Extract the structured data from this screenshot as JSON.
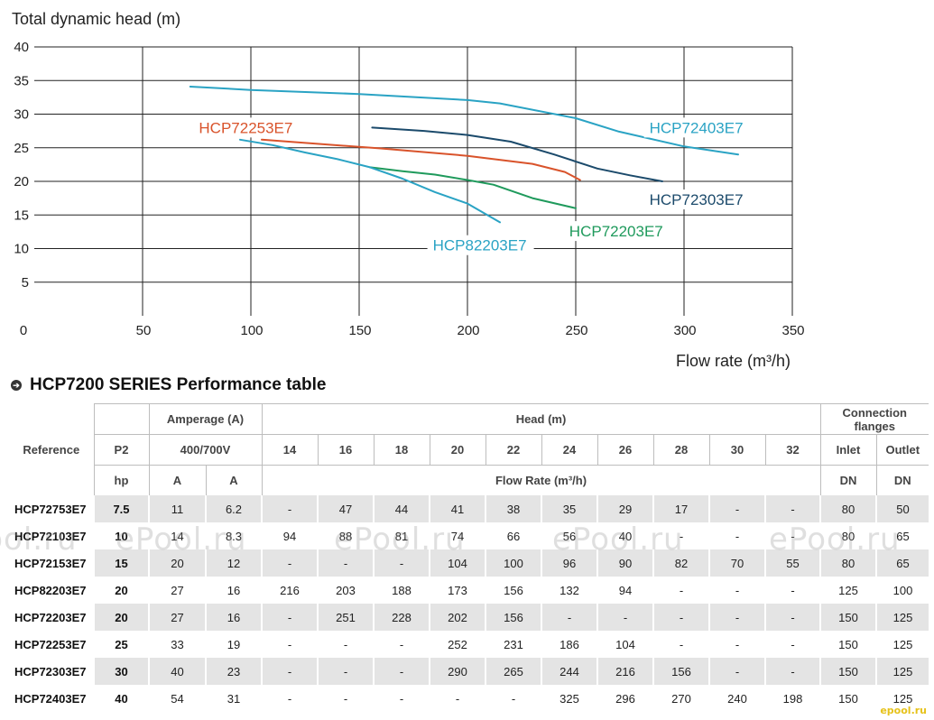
{
  "chart_data": {
    "type": "line",
    "ylabel": "Total dynamic head (m)",
    "xlabel": "Flow rate (m³/h)",
    "xlim": [
      0,
      350
    ],
    "ylim": [
      0,
      40
    ],
    "xticks": [
      0,
      50,
      100,
      150,
      200,
      250,
      300,
      350
    ],
    "yticks": [
      5,
      10,
      15,
      20,
      25,
      30,
      35,
      40
    ],
    "grid": true,
    "series": [
      {
        "name": "HCP72403E7",
        "color": "#2aa3c4",
        "points": [
          [
            72,
            34.1
          ],
          [
            100,
            33.6
          ],
          [
            150,
            33.0
          ],
          [
            200,
            32.1
          ],
          [
            215,
            31.6
          ],
          [
            250,
            29.4
          ],
          [
            270,
            27.4
          ],
          [
            300,
            25.2
          ],
          [
            325,
            24.0
          ]
        ]
      },
      {
        "name": "HCP72253E7",
        "color": "#d9532b",
        "points": [
          [
            105,
            26.2
          ],
          [
            130,
            25.6
          ],
          [
            160,
            24.9
          ],
          [
            200,
            23.8
          ],
          [
            230,
            22.6
          ],
          [
            245,
            21.4
          ],
          [
            252,
            20.2
          ]
        ]
      },
      {
        "name": "HCP72303E7",
        "color": "#1b4a6b",
        "points": [
          [
            156,
            28.0
          ],
          [
            180,
            27.5
          ],
          [
            200,
            26.9
          ],
          [
            220,
            25.9
          ],
          [
            240,
            24.0
          ],
          [
            260,
            21.9
          ],
          [
            275,
            20.9
          ],
          [
            290,
            20.0
          ]
        ]
      },
      {
        "name": "HCP72203E7",
        "color": "#1f9a5c",
        "points": [
          [
            155,
            22.1
          ],
          [
            170,
            21.5
          ],
          [
            185,
            21.0
          ],
          [
            200,
            20.2
          ],
          [
            212,
            19.5
          ],
          [
            230,
            17.5
          ],
          [
            250,
            16.0
          ]
        ]
      },
      {
        "name": "HCP82203E7",
        "color": "#2aa3c4",
        "points": [
          [
            95,
            26.2
          ],
          [
            110,
            25.4
          ],
          [
            125,
            24.3
          ],
          [
            140,
            23.3
          ],
          [
            155,
            22.1
          ],
          [
            170,
            20.4
          ],
          [
            185,
            18.4
          ],
          [
            200,
            16.7
          ],
          [
            215,
            13.9
          ]
        ]
      }
    ],
    "labels": [
      {
        "text": "HCP72253E7",
        "x": 76,
        "y": 27.2,
        "color": "#d9532b"
      },
      {
        "text": "HCP72403E7",
        "x": 284,
        "y": 27.2,
        "color": "#2aa3c4"
      },
      {
        "text": "HCP72303E7",
        "x": 284,
        "y": 16.5,
        "color": "#1b4a6b"
      },
      {
        "text": "HCP72203E7",
        "x": 247,
        "y": 11.8,
        "color": "#1f9a5c"
      },
      {
        "text": "HCP82203E7",
        "x": 184,
        "y": 9.7,
        "color": "#2aa3c4"
      }
    ]
  },
  "table": {
    "title": "HCP7200 SERIES Performance table",
    "bullet": "➔",
    "headers": {
      "reference": "Reference",
      "p2": "P2",
      "amperage": "Amperage (A)",
      "voltage": "400/700V",
      "head": "Head (m)",
      "flow_rate": "Flow Rate (m³/h)",
      "connection_flanges": "Connection flanges",
      "inlet": "Inlet",
      "outlet": "Outlet",
      "hp": "hp",
      "amp_unit": "A",
      "dn": "DN",
      "heads": [
        "14",
        "16",
        "18",
        "20",
        "22",
        "24",
        "26",
        "28",
        "30",
        "32"
      ]
    },
    "rows": [
      [
        "HCP72753E7",
        "7.5",
        "11",
        "6.2",
        "-",
        "47",
        "44",
        "41",
        "38",
        "35",
        "29",
        "17",
        "-",
        "-",
        "80",
        "50"
      ],
      [
        "HCP72103E7",
        "10",
        "14",
        "8.3",
        "94",
        "88",
        "81",
        "74",
        "66",
        "56",
        "40",
        "-",
        "-",
        "-",
        "80",
        "65"
      ],
      [
        "HCP72153E7",
        "15",
        "20",
        "12",
        "-",
        "-",
        "-",
        "104",
        "100",
        "96",
        "90",
        "82",
        "70",
        "55",
        "80",
        "65"
      ],
      [
        "HCP82203E7",
        "20",
        "27",
        "16",
        "216",
        "203",
        "188",
        "173",
        "156",
        "132",
        "94",
        "-",
        "-",
        "-",
        "125",
        "100"
      ],
      [
        "HCP72203E7",
        "20",
        "27",
        "16",
        "-",
        "251",
        "228",
        "202",
        "156",
        "-",
        "-",
        "-",
        "-",
        "-",
        "150",
        "125"
      ],
      [
        "HCP72253E7",
        "25",
        "33",
        "19",
        "-",
        "-",
        "-",
        "252",
        "231",
        "186",
        "104",
        "-",
        "-",
        "-",
        "150",
        "125"
      ],
      [
        "HCP72303E7",
        "30",
        "40",
        "23",
        "-",
        "-",
        "-",
        "290",
        "265",
        "244",
        "216",
        "156",
        "-",
        "-",
        "150",
        "125"
      ],
      [
        "HCP72403E7",
        "40",
        "54",
        "31",
        "-",
        "-",
        "-",
        "-",
        "-",
        "325",
        "296",
        "270",
        "240",
        "198",
        "150",
        "125"
      ]
    ]
  },
  "watermark": "ePool.ru",
  "logo": "epool.ru"
}
